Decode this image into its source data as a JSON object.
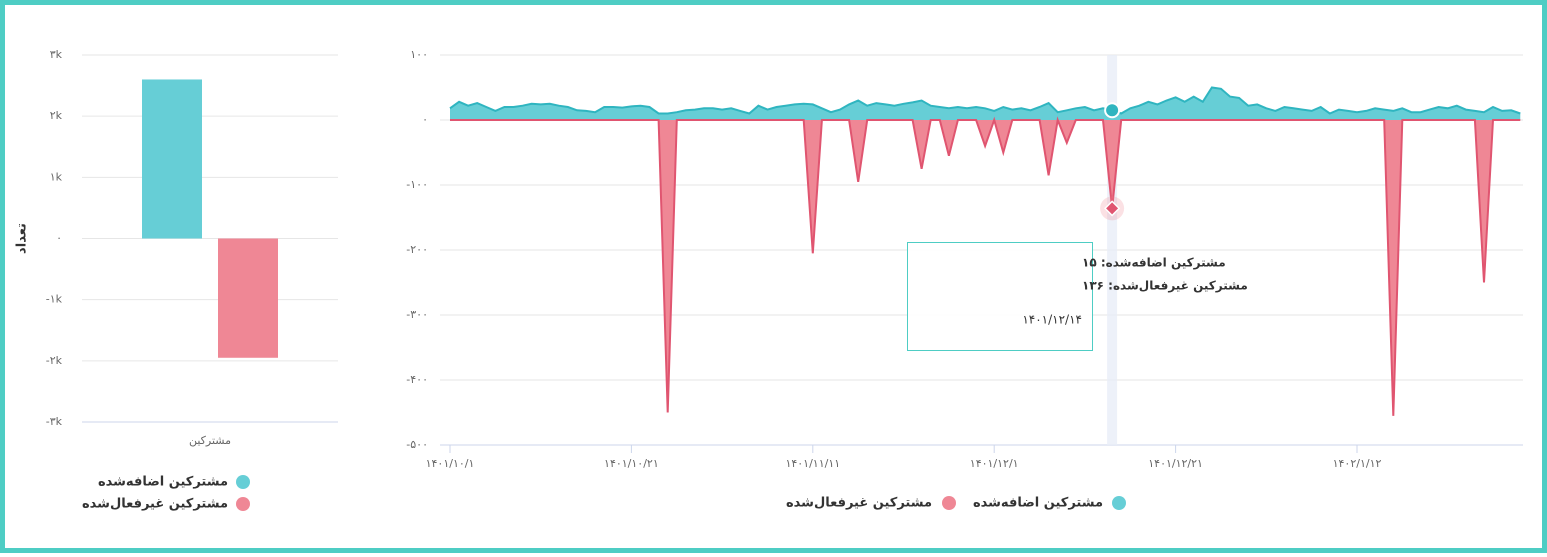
{
  "chart_data": [
    {
      "type": "bar",
      "y_label": "تعداد",
      "categories": [
        "مشترکین"
      ],
      "series": [
        {
          "name": "مشترکین اضافه‌شده",
          "color": "#66ced6",
          "values": [
            2600
          ]
        },
        {
          "name": "مشترکین غیرفعال‌شده",
          "color": "#ef8795",
          "values": [
            -1950
          ]
        }
      ],
      "ylim": [
        -3000,
        3000
      ],
      "yticks": [
        {
          "value": 3000,
          "label": "۳k"
        },
        {
          "value": 2000,
          "label": "۲k"
        },
        {
          "value": 1000,
          "label": "۱k"
        },
        {
          "value": 0,
          "label": "۰"
        },
        {
          "value": -1000,
          "label": "-۱k"
        },
        {
          "value": -2000,
          "label": "-۲k"
        },
        {
          "value": -3000,
          "label": "-۳k"
        }
      ],
      "grid": true
    },
    {
      "type": "area",
      "categories": [
        "۱۴۰۱/۱۰/۱",
        null,
        null,
        null,
        null,
        null,
        null,
        null,
        null,
        null,
        null,
        null,
        null,
        null,
        null,
        null,
        null,
        null,
        null,
        null,
        "۱۴۰۱/۱۰/۲۱",
        null,
        null,
        null,
        null,
        null,
        null,
        null,
        null,
        null,
        null,
        null,
        null,
        null,
        null,
        null,
        null,
        null,
        null,
        null,
        "۱۴۰۱/۱۱/۱۱",
        null,
        null,
        null,
        null,
        null,
        null,
        null,
        null,
        null,
        null,
        null,
        null,
        null,
        null,
        null,
        null,
        null,
        null,
        null,
        "۱۴۰۱/۱۲/۱",
        null,
        null,
        null,
        null,
        null,
        null,
        null,
        null,
        null,
        null,
        null,
        null,
        null,
        null,
        null,
        null,
        null,
        null,
        null,
        "۱۴۰۱/۱۲/۲۱",
        null,
        null,
        null,
        null,
        null,
        null,
        null,
        null,
        null,
        null,
        null,
        null,
        null,
        null,
        null,
        null,
        null,
        null,
        null,
        "۱۴۰۲/۱/۱۲",
        null,
        null,
        null,
        null,
        null,
        null,
        null,
        null,
        null,
        null,
        null,
        null,
        null,
        null,
        null,
        null,
        null,
        null
      ],
      "series": [
        {
          "name": "مشترکین اضافه‌شده",
          "color": "#66ced6",
          "stroke": "#2fb5c0",
          "values": [
            18,
            28,
            22,
            26,
            20,
            14,
            20,
            20,
            22,
            25,
            24,
            25,
            22,
            20,
            15,
            14,
            12,
            20,
            20,
            19,
            21,
            22,
            20,
            10,
            10,
            12,
            15,
            16,
            18,
            18,
            16,
            18,
            14,
            10,
            22,
            16,
            20,
            22,
            24,
            25,
            24,
            18,
            12,
            16,
            24,
            30,
            22,
            26,
            24,
            22,
            25,
            27,
            30,
            22,
            20,
            18,
            20,
            18,
            20,
            18,
            14,
            20,
            16,
            18,
            15,
            20,
            26,
            12,
            15,
            18,
            20,
            15,
            18,
            15,
            10,
            18,
            22,
            28,
            24,
            30,
            35,
            28,
            36,
            28,
            50,
            48,
            36,
            34,
            22,
            24,
            18,
            14,
            20,
            18,
            16,
            14,
            20,
            10,
            16,
            14,
            12,
            14,
            18,
            16,
            14,
            18,
            12,
            12,
            16,
            20,
            18,
            22,
            16,
            14,
            12,
            20,
            14,
            15,
            10
          ]
        },
        {
          "name": "مشترکین غیرفعال‌شده",
          "color": "#ef8795",
          "stroke": "#e05570",
          "values": [
            0,
            0,
            0,
            0,
            0,
            0,
            0,
            0,
            0,
            0,
            0,
            0,
            0,
            0,
            0,
            0,
            0,
            0,
            0,
            0,
            0,
            0,
            0,
            0,
            -450,
            0,
            0,
            0,
            0,
            0,
            0,
            0,
            0,
            0,
            0,
            0,
            0,
            0,
            0,
            0,
            -205,
            0,
            0,
            0,
            0,
            -95,
            0,
            0,
            0,
            0,
            0,
            0,
            -75,
            0,
            0,
            -55,
            0,
            0,
            0,
            -40,
            0,
            -50,
            0,
            0,
            0,
            0,
            -85,
            0,
            -35,
            0,
            0,
            0,
            0,
            -136,
            0,
            0,
            0,
            0,
            0,
            0,
            0,
            0,
            0,
            0,
            0,
            0,
            0,
            0,
            0,
            0,
            0,
            0,
            0,
            0,
            0,
            0,
            0,
            0,
            0,
            0,
            0,
            0,
            0,
            0,
            -455,
            0,
            0,
            0,
            0,
            0,
            0,
            0,
            0,
            0,
            -250,
            0,
            0,
            0,
            0
          ]
        }
      ],
      "ylim": [
        -500,
        100
      ],
      "yticks": [
        {
          "value": 100,
          "label": "۱۰۰"
        },
        {
          "value": 0,
          "label": "۰"
        },
        {
          "value": -100,
          "label": "-۱۰۰"
        },
        {
          "value": -200,
          "label": "-۲۰۰"
        },
        {
          "value": -300,
          "label": "-۳۰۰"
        },
        {
          "value": -400,
          "label": "-۴۰۰"
        },
        {
          "value": -500,
          "label": "-۵۰۰"
        }
      ],
      "grid": true,
      "tooltip": {
        "lines": [
          "مشترکین اضافه‌شده: ۱۵",
          "مشترکین غیرفعال‌شده: ۱۳۶"
        ],
        "date": "۱۴۰۱/۱۲/۱۴"
      }
    }
  ]
}
